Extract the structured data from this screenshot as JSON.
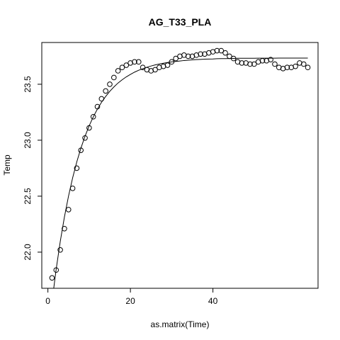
{
  "chart_data": {
    "type": "scatter",
    "title": "AG_T33_PLA",
    "x_label": "as.matrix(Time)",
    "y_label": "Temp",
    "x": [
      1,
      2,
      3,
      4,
      5,
      6,
      7,
      8,
      9,
      10,
      11,
      12,
      13,
      14,
      15,
      16,
      17,
      18,
      19,
      20,
      21,
      22,
      23,
      24,
      25,
      26,
      27,
      28,
      29,
      30,
      31,
      32,
      33,
      34,
      35,
      36,
      37,
      38,
      39,
      40,
      41,
      42,
      43,
      44,
      45,
      46,
      47,
      48,
      49,
      50,
      51,
      52,
      53,
      54,
      55,
      56,
      57,
      58,
      59,
      60,
      61,
      62,
      63
    ],
    "series": [
      {
        "color": "#000000",
        "values": [
          21.77,
          21.84,
          22.02,
          22.21,
          22.38,
          22.57,
          22.75,
          22.91,
          23.02,
          23.11,
          23.21,
          23.3,
          23.37,
          23.44,
          23.5,
          23.56,
          23.62,
          23.65,
          23.67,
          23.69,
          23.7,
          23.7,
          23.65,
          23.63,
          23.62,
          23.63,
          23.65,
          23.66,
          23.67,
          23.7,
          23.73,
          23.75,
          23.76,
          23.75,
          23.75,
          23.76,
          23.77,
          23.77,
          23.78,
          23.79,
          23.8,
          23.8,
          23.78,
          23.75,
          23.73,
          23.7,
          23.69,
          23.69,
          23.68,
          23.68,
          23.7,
          23.71,
          23.71,
          23.72,
          23.68,
          23.65,
          23.64,
          23.65,
          23.65,
          23.66,
          23.69,
          23.68,
          23.65
        ]
      },
      {
        "type": "line",
        "color": "#000000",
        "values": [
          21.557,
          21.846,
          22.096,
          22.313,
          22.501,
          22.664,
          22.806,
          22.929,
          23.036,
          23.128,
          23.209,
          23.278,
          23.339,
          23.391,
          23.437,
          23.476,
          23.511,
          23.54,
          23.566,
          23.588,
          23.608,
          23.625,
          23.639,
          23.652,
          23.663,
          23.673,
          23.681,
          23.688,
          23.694,
          23.7,
          23.704,
          23.708,
          23.712,
          23.715,
          23.718,
          23.72,
          23.722,
          23.724,
          23.725,
          23.726,
          23.728,
          23.729,
          23.729,
          23.73,
          23.731,
          23.732,
          23.732,
          23.732,
          23.732,
          23.732,
          23.733,
          23.733,
          23.733,
          23.733,
          23.733,
          23.734,
          23.734,
          23.734,
          23.734,
          23.734,
          23.734,
          23.734,
          23.734
        ]
      }
    ],
    "xlim": [
      -1.48,
      65.48
    ],
    "ylim": [
      21.677,
      23.873
    ],
    "xticks": [
      0,
      20,
      40
    ],
    "yticks": [
      {
        "value": 22,
        "label": "22.0"
      },
      22.5,
      {
        "value": 23,
        "label": "23.0"
      },
      23.5
    ]
  }
}
